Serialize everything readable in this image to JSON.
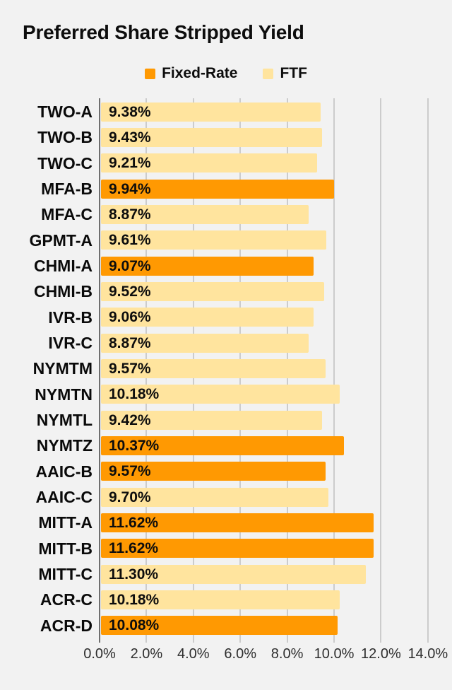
{
  "title": "Preferred Share Stripped Yield",
  "colors": {
    "background": "#f2f2f2",
    "fixed_rate": "#ff9902",
    "ftf": "#ffe49e",
    "gridline": "#cccccc",
    "axis_line": "#6f6f6f",
    "text": "#0d0d0d",
    "axis_label_text": "#2e2e2e"
  },
  "legend": {
    "items": [
      {
        "label": "Fixed-Rate",
        "series": "fixed_rate"
      },
      {
        "label": "FTF",
        "series": "ftf"
      }
    ]
  },
  "chart_data": {
    "type": "bar",
    "orientation": "horizontal",
    "title": "Preferred Share Stripped Yield",
    "xlabel": "",
    "ylabel": "",
    "xlim": [
      0,
      14
    ],
    "grid": true,
    "legend_position": "top",
    "x_ticks": [
      "0.0%",
      "2.0%",
      "4.0%",
      "6.0%",
      "8.0%",
      "10.0%",
      "12.0%",
      "14.0%"
    ],
    "x_tick_values": [
      0,
      2,
      4,
      6,
      8,
      10,
      12,
      14
    ],
    "categories": [
      "TWO-A",
      "TWO-B",
      "TWO-C",
      "MFA-B",
      "MFA-C",
      "GPMT-A",
      "CHMI-A",
      "CHMI-B",
      "IVR-B",
      "IVR-C",
      "NYMTM",
      "NYMTN",
      "NYMTL",
      "NYMTZ",
      "AAIC-B",
      "AAIC-C",
      "MITT-A",
      "MITT-B",
      "MITT-C",
      "ACR-C",
      "ACR-D"
    ],
    "values": [
      9.38,
      9.43,
      9.21,
      9.94,
      8.87,
      9.61,
      9.07,
      9.52,
      9.06,
      8.87,
      9.57,
      10.18,
      9.42,
      10.37,
      9.57,
      9.7,
      11.62,
      11.62,
      11.3,
      10.18,
      10.08
    ],
    "data_labels": [
      "9.38%",
      "9.43%",
      "9.21%",
      "9.94%",
      "8.87%",
      "9.61%",
      "9.07%",
      "9.52%",
      "9.06%",
      "8.87%",
      "9.57%",
      "10.18%",
      "9.42%",
      "10.37%",
      "9.57%",
      "9.70%",
      "11.62%",
      "11.62%",
      "11.30%",
      "10.18%",
      "10.08%"
    ],
    "series_by_category": [
      "ftf",
      "ftf",
      "ftf",
      "fixed_rate",
      "ftf",
      "ftf",
      "fixed_rate",
      "ftf",
      "ftf",
      "ftf",
      "ftf",
      "ftf",
      "ftf",
      "fixed_rate",
      "fixed_rate",
      "ftf",
      "fixed_rate",
      "fixed_rate",
      "ftf",
      "ftf",
      "fixed_rate"
    ]
  }
}
